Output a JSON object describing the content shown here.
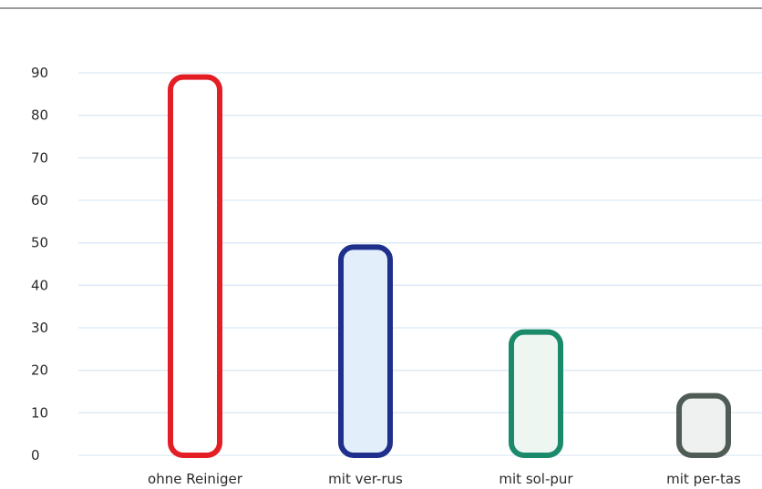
{
  "chart_data": {
    "type": "bar",
    "categories": [
      "ohne Reiniger",
      "mit ver-rus",
      "mit sol-pur",
      "mit per-tas"
    ],
    "values": [
      89,
      49,
      29,
      14
    ],
    "series": [
      {
        "values": [
          89,
          49,
          29,
          14
        ],
        "colors": [
          "#e31e24",
          "#1f2f8c",
          "#1a8a6a",
          "#4f5c55"
        ],
        "fills": [
          "#ffffff",
          "#e2effb",
          "#edf6f1",
          "#eef1ef"
        ]
      }
    ],
    "yticks": [
      0,
      10,
      20,
      30,
      40,
      50,
      60,
      70,
      80,
      90
    ],
    "ylim": [
      0,
      90
    ],
    "title": "",
    "xlabel": "",
    "ylabel": "",
    "grid": true,
    "gridColor": "#dce9f5",
    "axisColor": "#6b6b6b"
  }
}
